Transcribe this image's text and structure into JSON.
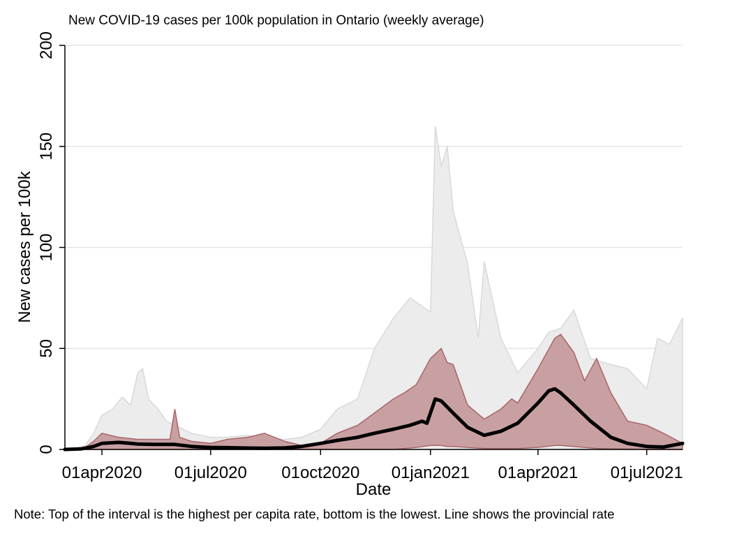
{
  "chart_data": {
    "type": "area",
    "title": "New COVID-19 cases per 100k population in Ontario (weekly average)",
    "xlabel": "Date",
    "ylabel": "New cases per 100k",
    "ylim": [
      0,
      200
    ],
    "yticks": [
      0,
      50,
      100,
      150,
      200
    ],
    "xlim": [
      "2020-03-01",
      "2021-07-31"
    ],
    "xticks": [
      {
        "date": "2020-04-01",
        "label": "01apr2020"
      },
      {
        "date": "2020-07-01",
        "label": "01jul2020"
      },
      {
        "date": "2020-10-01",
        "label": "01oct2020"
      },
      {
        "date": "2021-01-01",
        "label": "01jan2021"
      },
      {
        "date": "2021-04-01",
        "label": "01apr2021"
      },
      {
        "date": "2021-07-01",
        "label": "01jul2021"
      }
    ],
    "grid": true,
    "note": "Note: Top of the interval is the highest per capita rate, bottom is the lowest. Line shows the provincial rate",
    "colors": {
      "outer_band": "#ececec",
      "outer_edge": "#d9d9d9",
      "inner_band": "#c9a0a2",
      "inner_edge": "#a86468",
      "line": "#000000",
      "grid": "#dfe7e9"
    },
    "series": [
      {
        "role": "outer-band",
        "x": [
          "2020-03-01",
          "2020-03-10",
          "2020-03-18",
          "2020-03-25",
          "2020-04-01",
          "2020-04-10",
          "2020-04-18",
          "2020-04-25",
          "2020-05-01",
          "2020-05-05",
          "2020-05-10",
          "2020-05-18",
          "2020-05-25",
          "2020-06-01",
          "2020-06-15",
          "2020-07-01",
          "2020-07-15",
          "2020-08-01",
          "2020-08-15",
          "2020-09-01",
          "2020-09-15",
          "2020-10-01",
          "2020-10-15",
          "2020-11-01",
          "2020-11-15",
          "2020-12-01",
          "2020-12-15",
          "2021-01-01",
          "2021-01-05",
          "2021-01-10",
          "2021-01-15",
          "2021-01-20",
          "2021-02-01",
          "2021-02-10",
          "2021-02-15",
          "2021-03-01",
          "2021-03-15",
          "2021-04-01",
          "2021-04-10",
          "2021-04-20",
          "2021-05-01",
          "2021-05-15",
          "2021-06-01",
          "2021-06-15",
          "2021-07-01",
          "2021-07-10",
          "2021-07-20",
          "2021-07-31"
        ],
        "high": [
          0.5,
          0.5,
          2,
          8,
          17,
          20,
          26,
          22,
          38,
          40,
          25,
          20,
          14,
          12,
          8,
          6,
          6,
          7,
          5,
          5,
          6,
          10,
          20,
          25,
          50,
          65,
          75,
          68,
          160,
          140,
          150,
          118,
          92,
          55,
          93,
          55,
          38,
          50,
          58,
          60,
          69,
          45,
          42,
          40,
          30,
          55,
          52,
          65
        ],
        "low": [
          0,
          0,
          0,
          0,
          0,
          0,
          0,
          0,
          0,
          0,
          0,
          0,
          0,
          0,
          0,
          0,
          0,
          0,
          0,
          0,
          0,
          0,
          0,
          0,
          0,
          0,
          0,
          0,
          0,
          0,
          0,
          0,
          0,
          0,
          0,
          0,
          0,
          0,
          0,
          0,
          0,
          0,
          0,
          0,
          0,
          0,
          0,
          0
        ]
      },
      {
        "role": "inner-band",
        "x": [
          "2020-03-01",
          "2020-03-18",
          "2020-03-25",
          "2020-04-01",
          "2020-04-15",
          "2020-05-01",
          "2020-05-15",
          "2020-05-28",
          "2020-06-01",
          "2020-06-05",
          "2020-06-15",
          "2020-07-01",
          "2020-07-15",
          "2020-08-01",
          "2020-08-15",
          "2020-09-01",
          "2020-09-15",
          "2020-10-01",
          "2020-10-15",
          "2020-11-01",
          "2020-11-15",
          "2020-12-01",
          "2020-12-10",
          "2020-12-20",
          "2021-01-01",
          "2021-01-10",
          "2021-01-15",
          "2021-01-20",
          "2021-02-01",
          "2021-02-15",
          "2021-03-01",
          "2021-03-10",
          "2021-03-15",
          "2021-04-01",
          "2021-04-15",
          "2021-04-20",
          "2021-05-01",
          "2021-05-10",
          "2021-05-20",
          "2021-06-01",
          "2021-06-15",
          "2021-07-01",
          "2021-07-15",
          "2021-07-31"
        ],
        "high": [
          0,
          1,
          4,
          8,
          6,
          5,
          5,
          5,
          20,
          6,
          4,
          3,
          5,
          6,
          8,
          4,
          2,
          3,
          8,
          12,
          18,
          25,
          28,
          32,
          45,
          50,
          43,
          42,
          22,
          15,
          20,
          25,
          23,
          40,
          55,
          57,
          48,
          34,
          45,
          28,
          14,
          12,
          8,
          3
        ],
        "low": [
          0,
          0,
          0,
          0,
          0,
          0,
          0,
          0,
          0,
          0,
          0,
          0,
          0,
          0,
          0,
          0,
          0,
          0,
          0,
          0,
          0,
          0,
          0.5,
          1,
          2,
          2,
          1.5,
          1.5,
          1,
          0.5,
          0.5,
          0.5,
          0.5,
          1,
          2,
          2,
          1.5,
          1,
          0.5,
          0.3,
          0.2,
          0,
          0,
          0
        ]
      },
      {
        "role": "provincial-line",
        "x": [
          "2020-03-01",
          "2020-03-15",
          "2020-03-25",
          "2020-04-01",
          "2020-04-15",
          "2020-04-25",
          "2020-05-01",
          "2020-05-15",
          "2020-06-01",
          "2020-06-15",
          "2020-07-01",
          "2020-07-15",
          "2020-08-01",
          "2020-08-15",
          "2020-09-01",
          "2020-09-15",
          "2020-10-01",
          "2020-10-15",
          "2020-11-01",
          "2020-11-15",
          "2020-12-01",
          "2020-12-15",
          "2020-12-25",
          "2020-12-29",
          "2021-01-05",
          "2021-01-10",
          "2021-01-20",
          "2021-02-01",
          "2021-02-15",
          "2021-03-01",
          "2021-03-15",
          "2021-04-01",
          "2021-04-10",
          "2021-04-15",
          "2021-04-20",
          "2021-05-01",
          "2021-05-15",
          "2021-06-01",
          "2021-06-15",
          "2021-07-01",
          "2021-07-15",
          "2021-07-31"
        ],
        "y": [
          0,
          0.3,
          1.5,
          3,
          3.5,
          3,
          2.7,
          2.5,
          2.5,
          1.5,
          1,
          0.9,
          0.7,
          0.6,
          0.8,
          1.5,
          3,
          4.5,
          6,
          8,
          10,
          12,
          14,
          13,
          25,
          24,
          18,
          11,
          7,
          9,
          13,
          23,
          29,
          30,
          28,
          22,
          14,
          6,
          3,
          1.5,
          1.2,
          3
        ]
      }
    ]
  }
}
